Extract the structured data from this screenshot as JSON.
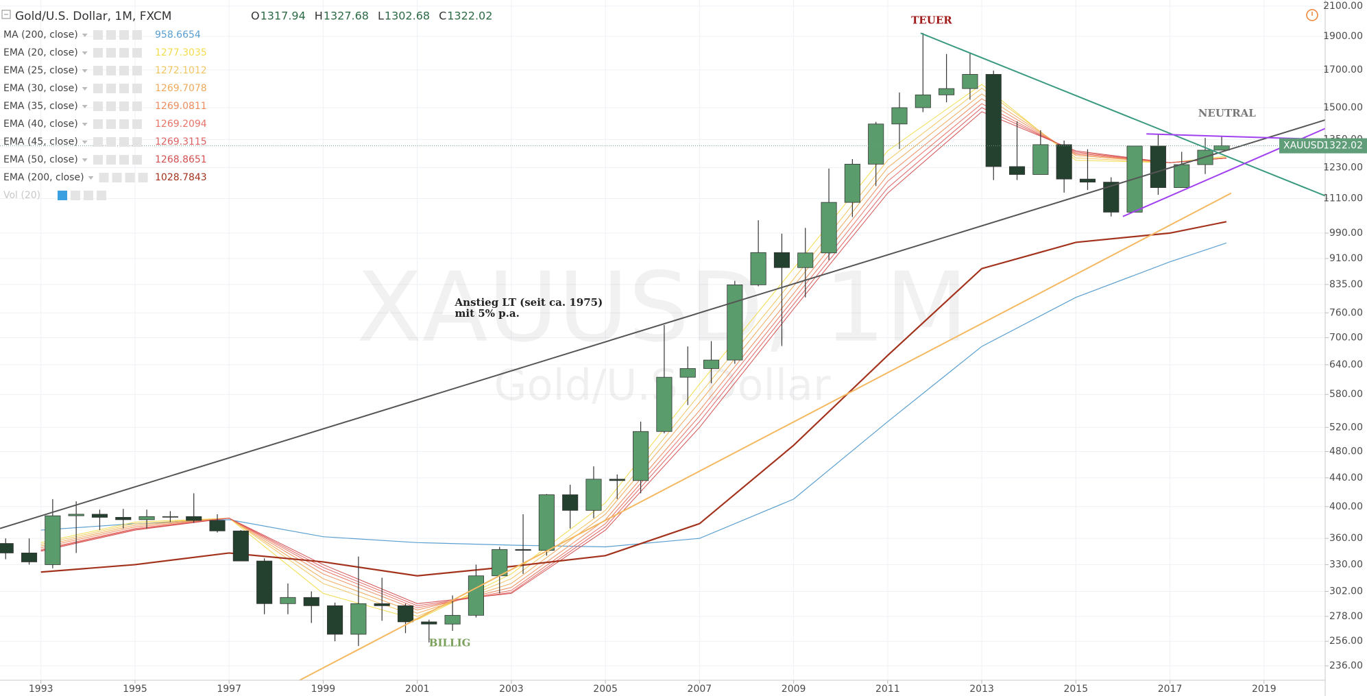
{
  "chart_data": {
    "type": "candlestick",
    "symbol": "Gold/U.S. Dollar, 1M, FXCM",
    "ohlc": [
      {
        "label": "O",
        "value": 1317.94
      },
      {
        "label": "H",
        "value": 1327.68
      },
      {
        "label": "L",
        "value": 1302.68
      },
      {
        "label": "C",
        "value": 1322.02
      }
    ],
    "ticker": "XAUUSD",
    "watermark": "XAUUSD, 1M",
    "watermark_sub": "Gold/U.S. Dollar",
    "volume_label": "Vol (20)",
    "log_scale": true,
    "grid": true,
    "xlim": [
      1992.13,
      2020.3
    ],
    "ylim": [
      225,
      2143
    ],
    "xticks": [
      1993,
      1995,
      1997,
      1999,
      2001,
      2003,
      2005,
      2007,
      2009,
      2011,
      2013,
      2015,
      2017,
      2019
    ],
    "yticks": [
      {
        "value": 236,
        "label": "236.00"
      },
      {
        "value": 256,
        "label": "256.00"
      },
      {
        "value": 278,
        "label": "278.00"
      },
      {
        "value": 302,
        "label": "302.00"
      },
      {
        "value": 330,
        "label": "330.00"
      },
      {
        "value": 360,
        "label": "360.00"
      },
      {
        "value": 400,
        "label": "400.00"
      },
      {
        "value": 440,
        "label": "440.00"
      },
      {
        "value": 480,
        "label": "480.00"
      },
      {
        "value": 520,
        "label": "520.00"
      },
      {
        "value": 580,
        "label": "580.00"
      },
      {
        "value": 640,
        "label": "640.00"
      },
      {
        "value": 700,
        "label": "700.00"
      },
      {
        "value": 760,
        "label": "760.00"
      },
      {
        "value": 835,
        "label": "835.00"
      },
      {
        "value": 910,
        "label": "910.00"
      },
      {
        "value": 990,
        "label": "990.00"
      },
      {
        "value": 1110,
        "label": "1110.00"
      },
      {
        "value": 1230,
        "label": "1230.00"
      },
      {
        "value": 1350,
        "label": "1350.00"
      },
      {
        "value": 1500,
        "label": "1500.00"
      },
      {
        "value": 1700,
        "label": "1700.00"
      },
      {
        "value": 1900,
        "label": "1900.00"
      },
      {
        "value": 2100,
        "label": "2100.00"
      }
    ],
    "candles": {
      "up_color": "#5b9c6c",
      "down_color": "#24402e",
      "x": [
        1992.25,
        1992.75,
        1993.25,
        1993.75,
        1994.25,
        1994.75,
        1995.25,
        1995.75,
        1996.25,
        1996.75,
        1997.25,
        1997.75,
        1998.25,
        1998.75,
        1999.25,
        1999.75,
        2000.25,
        2000.75,
        2001.25,
        2001.75,
        2002.25,
        2002.75,
        2003.25,
        2003.75,
        2004.25,
        2004.75,
        2005.25,
        2005.75,
        2006.25,
        2006.75,
        2007.25,
        2007.75,
        2008.25,
        2008.75,
        2009.25,
        2009.75,
        2010.25,
        2010.75,
        2011.25,
        2011.75,
        2012.25,
        2012.75,
        2013.25,
        2013.75,
        2014.25,
        2014.75,
        2015.25,
        2015.75,
        2016.25,
        2016.75,
        2017.25,
        2017.75,
        2018.1
      ],
      "open": [
        354,
        343,
        330,
        388,
        390,
        386,
        383,
        387,
        387,
        382,
        369,
        334,
        290,
        296,
        288,
        262,
        290,
        288,
        273,
        271,
        279,
        318,
        347,
        346,
        416,
        395,
        438,
        436,
        513,
        614,
        632,
        650,
        834,
        928,
        883,
        927,
        1096,
        1244,
        1421,
        1500,
        1565,
        1598,
        1675,
        1234,
        1202,
        1327,
        1184,
        1172,
        1061,
        1321,
        1151,
        1242,
        1303
      ],
      "high": [
        360,
        360,
        410,
        407,
        396,
        397,
        396,
        394,
        418,
        390,
        370,
        337,
        310,
        302,
        291,
        339,
        316,
        290,
        275,
        298,
        330,
        350,
        390,
        417,
        430,
        457,
        445,
        530,
        730,
        680,
        692,
        845,
        1033,
        988,
        1007,
        1226,
        1265,
        1431,
        1577,
        1921,
        1792,
        1795,
        1696,
        1434,
        1392,
        1345,
        1307,
        1191,
        1303,
        1375,
        1296,
        1357,
        1366
      ],
      "low": [
        336,
        330,
        326,
        343,
        370,
        372,
        372,
        380,
        379,
        367,
        335,
        280,
        280,
        272,
        256,
        252,
        274,
        263,
        255,
        265,
        277,
        300,
        320,
        340,
        372,
        385,
        410,
        418,
        510,
        560,
        602,
        642,
        830,
        681,
        800,
        905,
        1044,
        1157,
        1308,
        1478,
        1527,
        1540,
        1180,
        1180,
        1202,
        1132,
        1142,
        1046,
        1062,
        1124,
        1150,
        1204,
        1302
      ],
      "close": [
        343,
        333,
        388,
        390,
        386,
        383,
        387,
        387,
        382,
        369,
        334,
        290,
        296,
        288,
        262,
        290,
        288,
        273,
        271,
        279,
        318,
        347,
        346,
        416,
        395,
        438,
        436,
        513,
        614,
        632,
        650,
        834,
        928,
        883,
        927,
        1096,
        1244,
        1421,
        1500,
        1565,
        1598,
        1675,
        1234,
        1202,
        1327,
        1184,
        1172,
        1061,
        1321,
        1151,
        1242,
        1303,
        1322
      ]
    },
    "indicator_x": [
      1993,
      1995,
      1997,
      1999,
      2001,
      2003,
      2005,
      2007,
      2009,
      2011,
      2013,
      2015,
      2017,
      2018.2
    ],
    "indicators": [
      {
        "name": "MA (200, close)",
        "last": 958.6654,
        "color": "#5a9fd0",
        "width": 1.2,
        "values": [
          370,
          378,
          383,
          362,
          355,
          352,
          350,
          360,
          410,
          530,
          680,
          800,
          900,
          958
        ]
      },
      {
        "name": "EMA (20, close)",
        "last": 1277.3035,
        "color": "#f2dc4a",
        "width": 1,
        "values": [
          355,
          380,
          385,
          300,
          275,
          320,
          405,
          600,
          880,
          1300,
          1620,
          1260,
          1250,
          1277
        ]
      },
      {
        "name": "EMA (25, close)",
        "last": 1272.1012,
        "color": "#f3c560",
        "width": 1,
        "values": [
          353,
          378,
          385,
          310,
          278,
          315,
          395,
          580,
          850,
          1260,
          1600,
          1270,
          1250,
          1272
        ]
      },
      {
        "name": "EMA (30, close)",
        "last": 1269.7078,
        "color": "#f0a95a",
        "width": 1,
        "values": [
          351,
          376,
          385,
          315,
          281,
          310,
          390,
          565,
          830,
          1230,
          1570,
          1280,
          1250,
          1270
        ]
      },
      {
        "name": "EMA (35, close)",
        "last": 1269.0811,
        "color": "#ee8c5e",
        "width": 1,
        "values": [
          349,
          374,
          385,
          320,
          284,
          306,
          383,
          550,
          810,
          1200,
          1545,
          1285,
          1250,
          1269
        ]
      },
      {
        "name": "EMA (40, close)",
        "last": 1269.2094,
        "color": "#e87466",
        "width": 1,
        "values": [
          347,
          372,
          385,
          324,
          286,
          303,
          378,
          540,
          795,
          1175,
          1520,
          1290,
          1250,
          1269
        ]
      },
      {
        "name": "EMA (45, close)",
        "last": 1269.3115,
        "color": "#e06262",
        "width": 1,
        "values": [
          346,
          371,
          385,
          327,
          288,
          301,
          374,
          530,
          782,
          1150,
          1500,
          1295,
          1250,
          1269
        ]
      },
      {
        "name": "EMA (50, close)",
        "last": 1268.8651,
        "color": "#d45050",
        "width": 1,
        "values": [
          345,
          370,
          385,
          330,
          290,
          300,
          370,
          520,
          770,
          1130,
          1480,
          1300,
          1250,
          1269
        ]
      },
      {
        "name": "EMA (200, close)",
        "last": 1028.7843,
        "color": "#a3321c",
        "width": 2.2,
        "values": [
          322,
          330,
          343,
          333,
          318,
          328,
          340,
          378,
          490,
          660,
          880,
          960,
          990,
          1028
        ]
      }
    ],
    "drawings": [
      {
        "color": "#555555",
        "x": [
          1992.13,
          2020.3
        ],
        "y": [
          372,
          1440
        ]
      },
      {
        "color": "#3a9a80",
        "x": [
          2011.7,
          2020.3
        ],
        "y": [
          1920,
          1120
        ]
      },
      {
        "color": "#a040f0",
        "x": [
          2016.5,
          2020.3
        ],
        "y": [
          1375,
          1350
        ]
      },
      {
        "color": "#a040f0",
        "x": [
          2016.0,
          2020.3
        ],
        "y": [
          1046,
          1400
        ]
      },
      {
        "color": "#f4b860",
        "x": [
          1998.5,
          2018.3
        ],
        "y": [
          225,
          1130
        ]
      }
    ],
    "annotations": [
      {
        "text": "TEUER",
        "x": 2011.5,
        "y": 2000,
        "color": "#a01a1a"
      },
      {
        "text": "BILLIG",
        "x": 2001.25,
        "y": 254,
        "color": "#7ba05b"
      },
      {
        "text": "NEUTRAL",
        "x": 2017.6,
        "y": 1470,
        "color": "#777777"
      },
      {
        "text": "Anstieg LT (seit ca. 1975)",
        "x": 2001.8,
        "y": 785,
        "color": "#222222"
      },
      {
        "text": "mit 5% p.a.",
        "x": 2001.8,
        "y": 757,
        "color": "#222222"
      }
    ]
  }
}
